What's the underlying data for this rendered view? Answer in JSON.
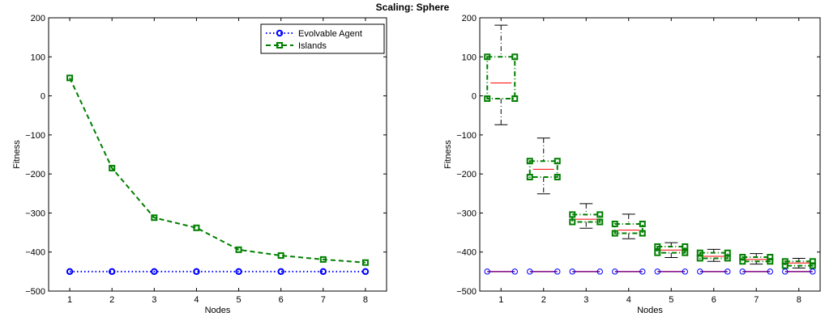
{
  "title": "Scaling: Sphere",
  "chart_data": [
    {
      "type": "line",
      "xlabel": "Nodes",
      "ylabel": "Fitness",
      "x": [
        1,
        2,
        3,
        4,
        5,
        6,
        7,
        8
      ],
      "xlim": [
        0.5,
        8.5
      ],
      "ylim": [
        -500,
        200
      ],
      "xticks": [
        "1",
        "2",
        "3",
        "4",
        "5",
        "6",
        "7",
        "8"
      ],
      "yticks": [
        -500,
        -400,
        -300,
        -200,
        -100,
        0,
        100,
        200
      ],
      "grid": false,
      "legend_position": "top-right",
      "series": [
        {
          "name": "Evolvable Agent",
          "color": "#0000ff",
          "style": "dotted-circle",
          "values": [
            -450,
            -450,
            -450,
            -450,
            -450,
            -450,
            -450,
            -450
          ]
        },
        {
          "name": "Islands",
          "color": "#007f00",
          "style": "dashed-square",
          "values": [
            46,
            -185,
            -312,
            -338,
            -394,
            -409,
            -419,
            -427
          ]
        }
      ]
    },
    {
      "type": "boxplot",
      "xlabel": "Nodes",
      "ylabel": "Fitness",
      "categories": [
        "1",
        "2",
        "3",
        "4",
        "5",
        "6",
        "7",
        "8"
      ],
      "xlim": [
        0.5,
        8.5
      ],
      "ylim": [
        -500,
        200
      ],
      "yticks": [
        -500,
        -400,
        -300,
        -200,
        -100,
        0,
        100,
        200
      ],
      "series": [
        {
          "color": "#007f00",
          "median_color": "#ff0000",
          "boxes": [
            {
              "min": -74,
              "q1": -7,
              "median": 33,
              "q3": 100,
              "max": 181
            },
            {
              "min": -251,
              "q1": -208,
              "median": -188,
              "q3": -167,
              "max": -108
            },
            {
              "min": -339,
              "q1": -323,
              "median": -316,
              "q3": -304,
              "max": -276
            },
            {
              "min": -366,
              "q1": -352,
              "median": -344,
              "q3": -328,
              "max": -303
            },
            {
              "min": -414,
              "q1": -402,
              "median": -395,
              "q3": -386,
              "max": -376
            },
            {
              "min": -424,
              "q1": -416,
              "median": -411,
              "q3": -402,
              "max": -393
            },
            {
              "min": -431,
              "q1": -424,
              "median": -419,
              "q3": -413,
              "max": -404
            },
            {
              "min": -441,
              "q1": -435,
              "median": -428,
              "q3": -424,
              "max": -416
            }
          ]
        },
        {
          "color": "#0000ff",
          "median_color": "#7f007f",
          "constant_value": -450,
          "values": [
            -450,
            -450,
            -450,
            -450,
            -450,
            -450,
            -450,
            -450
          ]
        }
      ]
    }
  ]
}
